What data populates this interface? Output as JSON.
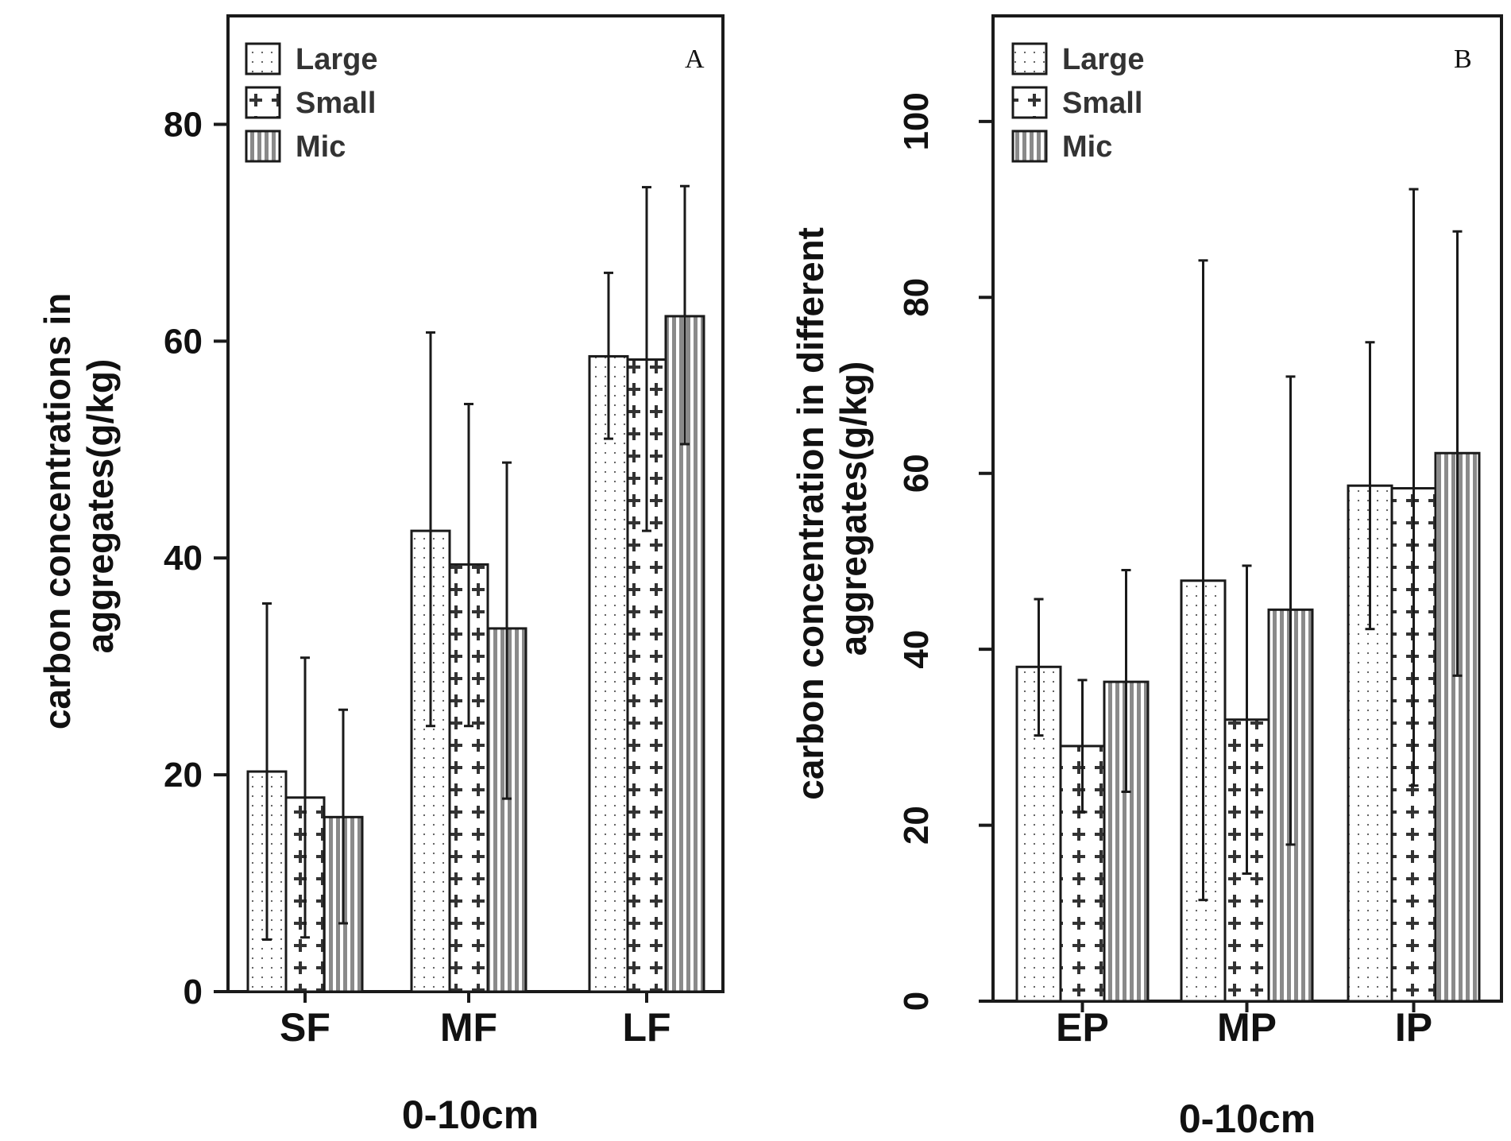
{
  "chart_data": [
    {
      "type": "bar",
      "panel_label": "A",
      "title": "",
      "xlabel": "0-10cm",
      "ylabel_lines": [
        "carbon concentrations in",
        "aggregates(g/kg)"
      ],
      "ylim": [
        0,
        90
      ],
      "yticks": [
        0,
        20,
        40,
        60,
        80
      ],
      "ytick_labels": [
        "0",
        "20",
        "40",
        "60",
        "80"
      ],
      "categories": [
        "SF",
        "MF",
        "LF"
      ],
      "legend": [
        "Large",
        "Small",
        "Mic"
      ],
      "legend_position": "top-left",
      "series": [
        {
          "name": "Large",
          "values": [
            20.3,
            42.5,
            58.6
          ],
          "err_low": [
            4.8,
            24.5,
            51.0
          ],
          "err_high": [
            35.8,
            60.8,
            66.3
          ]
        },
        {
          "name": "Small",
          "values": [
            17.9,
            39.4,
            58.3
          ],
          "err_low": [
            5.0,
            24.5,
            42.5
          ],
          "err_high": [
            30.8,
            54.2,
            74.2
          ]
        },
        {
          "name": "Mic",
          "values": [
            16.1,
            33.5,
            62.3
          ],
          "err_low": [
            6.3,
            17.8,
            50.5
          ],
          "err_high": [
            26.0,
            48.8,
            74.3
          ]
        }
      ]
    },
    {
      "type": "bar",
      "panel_label": "B",
      "title": "",
      "xlabel": "0-10cm",
      "ylabel_lines": [
        "carbon concentration in different",
        "aggregates(g/kg)"
      ],
      "ylim": [
        0,
        112
      ],
      "yticks": [
        0,
        20,
        40,
        60,
        80,
        100
      ],
      "ytick_labels": [
        "0",
        "20",
        "40",
        "60",
        "80",
        "100"
      ],
      "categories": [
        "EP",
        "MP",
        "IP"
      ],
      "legend": [
        "Large",
        "Small",
        "Mic"
      ],
      "legend_position": "top-left",
      "series": [
        {
          "name": "Large",
          "values": [
            38.0,
            47.8,
            58.6
          ],
          "err_low": [
            30.2,
            11.5,
            42.3
          ],
          "err_high": [
            45.7,
            84.2,
            74.9
          ]
        },
        {
          "name": "Small",
          "values": [
            29.0,
            32.0,
            58.3
          ],
          "err_low": [
            21.5,
            14.5,
            24.5
          ],
          "err_high": [
            36.5,
            49.5,
            92.3
          ]
        },
        {
          "name": "Mic",
          "values": [
            36.3,
            44.5,
            62.3
          ],
          "err_low": [
            23.8,
            17.8,
            37.0
          ],
          "err_high": [
            49.0,
            71.0,
            87.5
          ]
        }
      ]
    }
  ]
}
